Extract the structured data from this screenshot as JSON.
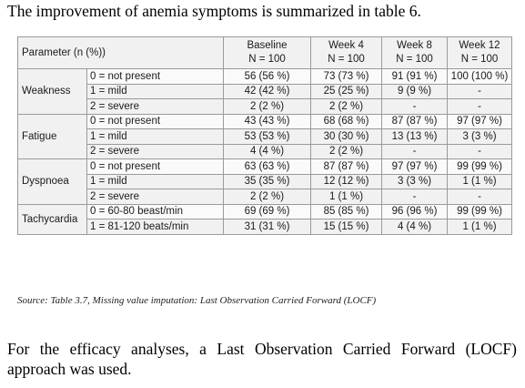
{
  "intro_text": "The improvement of anemia symptoms is summarized in table 6.",
  "table": {
    "header": {
      "parameter": "Parameter (n (%))",
      "cols": [
        {
          "label": "Baseline",
          "n": "N = 100"
        },
        {
          "label": "Week 4",
          "n": "N = 100"
        },
        {
          "label": "Week 8",
          "n": "N = 100"
        },
        {
          "label": "Week 12",
          "n": "N = 100"
        }
      ]
    },
    "groups": [
      {
        "name": "Weakness",
        "rows": [
          {
            "level": "0 = not present",
            "values": [
              "56 (56 %)",
              "73 (73 %)",
              "91 (91 %)",
              "100 (100 %)"
            ]
          },
          {
            "level": "1 = mild",
            "values": [
              "42 (42 %)",
              "25 (25 %)",
              "9 (9 %)",
              "-"
            ]
          },
          {
            "level": "2 = severe",
            "values": [
              "2 (2 %)",
              "2 (2 %)",
              "-",
              "-"
            ]
          }
        ]
      },
      {
        "name": "Fatigue",
        "rows": [
          {
            "level": "0 = not present",
            "values": [
              "43 (43 %)",
              "68 (68 %)",
              "87 (87 %)",
              "97 (97 %)"
            ]
          },
          {
            "level": "1 = mild",
            "values": [
              "53 (53 %)",
              "30 (30 %)",
              "13 (13 %)",
              "3 (3 %)"
            ]
          },
          {
            "level": "2 = severe",
            "values": [
              "4 (4 %)",
              "2 (2 %)",
              "-",
              "-"
            ]
          }
        ]
      },
      {
        "name": "Dyspnoea",
        "rows": [
          {
            "level": "0 = not present",
            "values": [
              "63 (63 %)",
              "87 (87 %)",
              "97 (97 %)",
              "99 (99 %)"
            ]
          },
          {
            "level": "1 = mild",
            "values": [
              "35 (35 %)",
              "12 (12 %)",
              "3 (3 %)",
              "1 (1 %)"
            ]
          },
          {
            "level": "2 = severe",
            "values": [
              "2 (2 %)",
              "1 (1 %)",
              "-",
              "-"
            ]
          }
        ]
      },
      {
        "name": "Tachycardia",
        "rows": [
          {
            "level": "0 = 60-80 beast/min",
            "values": [
              "69 (69 %)",
              "85 (85 %)",
              "96 (96 %)",
              "99 (99 %)"
            ]
          },
          {
            "level": "1 = 81-120 beats/min",
            "values": [
              "31 (31 %)",
              "15 (15 %)",
              "4 (4 %)",
              "1 (1 %)"
            ]
          }
        ]
      }
    ]
  },
  "source_note": "Source: Table 3.7, Missing value imputation: Last Observation Carried Forward (LOCF)",
  "paragraph": "For the efficacy analyses, a Last Observation Carried Forward (LOCF) approach was used."
}
